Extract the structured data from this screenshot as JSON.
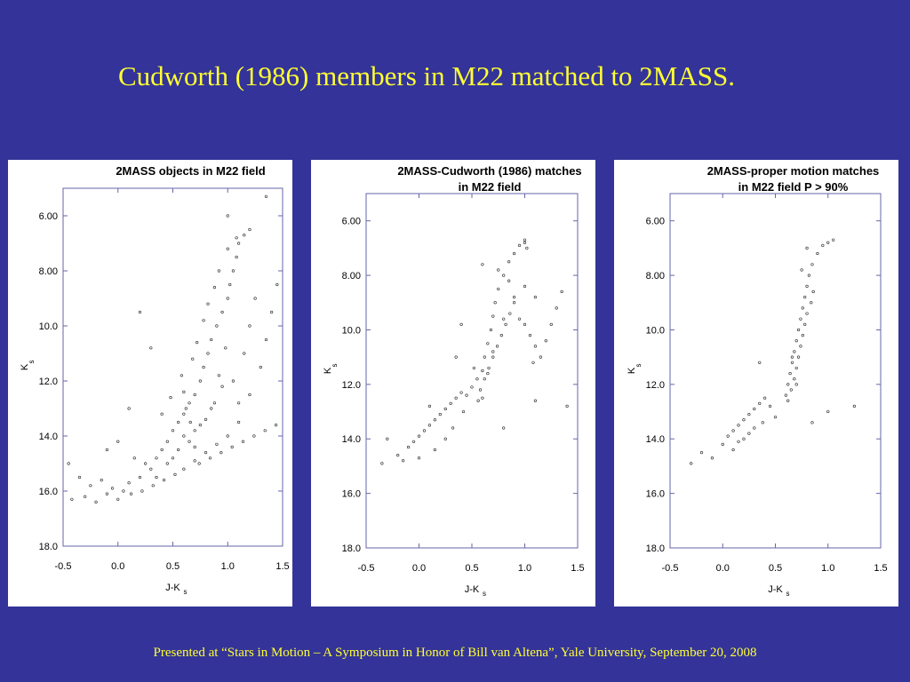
{
  "slide": {
    "title": "Cudworth (1986) members in M22 matched to 2MASS.",
    "footer": "Presented at “Stars in Motion – A Symposium in Honor of Bill van Altena”, Yale University, September 20, 2008",
    "background": "#333399",
    "title_color": "#ffff33"
  },
  "chart_data": [
    {
      "type": "scatter",
      "title_lines": [
        "2MASS objects in M22 field"
      ],
      "xlabel": "J-K",
      "xlabel_sub": "s",
      "ylabel": "K",
      "ylabel_sub": "s",
      "xlim": [
        -0.5,
        1.5
      ],
      "ylim": [
        18.0,
        5.0
      ],
      "xticks": [
        -0.5,
        0.0,
        0.5,
        1.0,
        1.5
      ],
      "xtick_labels": [
        "-0.5",
        "0.0",
        "0.5",
        "1.0",
        "1.5"
      ],
      "yticks": [
        6.0,
        8.0,
        10.0,
        12.0,
        14.0,
        16.0,
        18.0
      ],
      "ytick_labels": [
        "6.00",
        "8.00",
        "10.0",
        "12.0",
        "14.0",
        "16.0",
        "18.0"
      ],
      "grid": false,
      "points": [
        [
          -0.42,
          16.3
        ],
        [
          -0.3,
          16.2
        ],
        [
          -0.2,
          16.4
        ],
        [
          -0.1,
          16.1
        ],
        [
          0.0,
          16.3
        ],
        [
          0.05,
          16.0
        ],
        [
          -0.25,
          15.8
        ],
        [
          -0.15,
          15.6
        ],
        [
          0.1,
          15.7
        ],
        [
          0.2,
          15.5
        ],
        [
          0.3,
          15.2
        ],
        [
          0.35,
          14.8
        ],
        [
          0.4,
          14.5
        ],
        [
          0.45,
          14.2
        ],
        [
          0.5,
          13.8
        ],
        [
          0.55,
          13.5
        ],
        [
          0.6,
          13.2
        ],
        [
          0.65,
          12.8
        ],
        [
          0.7,
          12.5
        ],
        [
          0.75,
          12.0
        ],
        [
          0.78,
          11.5
        ],
        [
          0.82,
          11.0
        ],
        [
          0.85,
          10.5
        ],
        [
          0.9,
          10.0
        ],
        [
          0.95,
          9.5
        ],
        [
          1.0,
          9.0
        ],
        [
          1.02,
          8.5
        ],
        [
          1.05,
          8.0
        ],
        [
          1.08,
          7.5
        ],
        [
          1.1,
          7.0
        ],
        [
          0.6,
          14.0
        ],
        [
          0.65,
          14.2
        ],
        [
          0.7,
          13.8
        ],
        [
          0.75,
          13.6
        ],
        [
          0.8,
          13.4
        ],
        [
          0.85,
          13.0
        ],
        [
          0.55,
          14.5
        ],
        [
          0.5,
          14.8
        ],
        [
          0.45,
          15.0
        ],
        [
          0.6,
          15.2
        ],
        [
          0.7,
          14.9
        ],
        [
          0.8,
          14.6
        ],
        [
          0.9,
          14.3
        ],
        [
          1.0,
          14.0
        ],
        [
          1.1,
          13.5
        ],
        [
          1.2,
          12.5
        ],
        [
          1.3,
          11.5
        ],
        [
          1.35,
          10.5
        ],
        [
          1.4,
          9.5
        ],
        [
          1.45,
          8.5
        ],
        [
          1.2,
          10.0
        ],
        [
          1.25,
          9.0
        ],
        [
          1.15,
          11.0
        ],
        [
          0.95,
          12.2
        ],
        [
          0.88,
          12.8
        ],
        [
          0.92,
          11.8
        ],
        [
          0.98,
          10.8
        ],
        [
          1.05,
          12.0
        ],
        [
          1.1,
          12.8
        ],
        [
          0.3,
          10.8
        ],
        [
          0.2,
          9.5
        ],
        [
          0.1,
          13.0
        ],
        [
          0.0,
          14.2
        ],
        [
          -0.1,
          14.5
        ],
        [
          0.15,
          14.8
        ],
        [
          0.25,
          15.0
        ],
        [
          0.35,
          15.5
        ],
        [
          0.4,
          13.2
        ],
        [
          0.48,
          12.6
        ],
        [
          0.58,
          11.8
        ],
        [
          0.68,
          11.2
        ],
        [
          0.72,
          10.6
        ],
        [
          0.78,
          9.8
        ],
        [
          0.82,
          9.2
        ],
        [
          0.88,
          8.6
        ],
        [
          0.92,
          8.0
        ],
        [
          1.0,
          7.2
        ],
        [
          1.08,
          6.8
        ],
        [
          1.15,
          6.7
        ],
        [
          1.2,
          6.5
        ],
        [
          1.35,
          5.3
        ],
        [
          1.0,
          6.0
        ],
        [
          0.6,
          12.4
        ],
        [
          0.62,
          13.0
        ],
        [
          0.66,
          13.5
        ],
        [
          0.7,
          14.4
        ],
        [
          0.74,
          15.0
        ],
        [
          0.84,
          14.8
        ],
        [
          0.94,
          14.6
        ],
        [
          1.04,
          14.4
        ],
        [
          1.14,
          14.2
        ],
        [
          1.24,
          14.0
        ],
        [
          1.34,
          13.8
        ],
        [
          1.44,
          13.6
        ],
        [
          0.52,
          15.4
        ],
        [
          0.42,
          15.6
        ],
        [
          0.32,
          15.8
        ],
        [
          0.22,
          16.0
        ],
        [
          0.12,
          16.1
        ],
        [
          -0.05,
          15.9
        ],
        [
          -0.35,
          15.5
        ],
        [
          -0.45,
          15.0
        ]
      ]
    },
    {
      "type": "scatter",
      "title_lines": [
        "2MASS-Cudworth (1986) matches",
        "in M22 field"
      ],
      "xlabel": "J-K",
      "xlabel_sub": "s",
      "ylabel": "K",
      "ylabel_sub": "s",
      "xlim": [
        -0.5,
        1.5
      ],
      "ylim": [
        18.0,
        5.0
      ],
      "xticks": [
        -0.5,
        0.0,
        0.5,
        1.0,
        1.5
      ],
      "xtick_labels": [
        "-0.5",
        "0.0",
        "0.5",
        "1.0",
        "1.5"
      ],
      "yticks": [
        6.0,
        8.0,
        10.0,
        12.0,
        14.0,
        16.0,
        18.0
      ],
      "ytick_labels": [
        "6.00",
        "8.00",
        "10.0",
        "12.0",
        "14.0",
        "16.0",
        "18.0"
      ],
      "grid": false,
      "points": [
        [
          -0.35,
          14.9
        ],
        [
          -0.3,
          14.0
        ],
        [
          -0.2,
          14.6
        ],
        [
          -0.1,
          14.3
        ],
        [
          -0.05,
          14.1
        ],
        [
          0.0,
          13.9
        ],
        [
          0.05,
          13.7
        ],
        [
          0.1,
          13.5
        ],
        [
          0.15,
          13.3
        ],
        [
          0.2,
          13.1
        ],
        [
          0.25,
          12.9
        ],
        [
          0.3,
          12.7
        ],
        [
          0.35,
          12.5
        ],
        [
          0.4,
          12.3
        ],
        [
          0.45,
          12.4
        ],
        [
          0.5,
          12.1
        ],
        [
          0.55,
          11.8
        ],
        [
          0.6,
          11.5
        ],
        [
          0.62,
          11.0
        ],
        [
          0.65,
          10.5
        ],
        [
          0.68,
          10.0
        ],
        [
          0.7,
          9.5
        ],
        [
          0.72,
          9.0
        ],
        [
          0.75,
          8.5
        ],
        [
          0.8,
          8.0
        ],
        [
          0.85,
          7.5
        ],
        [
          0.9,
          7.2
        ],
        [
          0.95,
          6.9
        ],
        [
          1.0,
          6.8
        ],
        [
          0.6,
          12.5
        ],
        [
          0.58,
          12.2
        ],
        [
          0.62,
          11.8
        ],
        [
          0.66,
          11.4
        ],
        [
          0.7,
          11.0
        ],
        [
          0.74,
          10.6
        ],
        [
          0.78,
          10.2
        ],
        [
          0.82,
          9.8
        ],
        [
          0.86,
          9.4
        ],
        [
          0.9,
          9.0
        ],
        [
          0.95,
          9.6
        ],
        [
          1.0,
          9.8
        ],
        [
          1.05,
          10.2
        ],
        [
          1.1,
          10.6
        ],
        [
          1.15,
          11.0
        ],
        [
          1.2,
          10.4
        ],
        [
          1.25,
          9.8
        ],
        [
          1.3,
          9.2
        ],
        [
          1.35,
          8.6
        ],
        [
          1.1,
          8.8
        ],
        [
          1.0,
          8.4
        ],
        [
          0.9,
          8.8
        ],
        [
          0.8,
          9.6
        ],
        [
          0.7,
          10.8
        ],
        [
          0.65,
          11.6
        ],
        [
          0.56,
          12.6
        ],
        [
          0.52,
          11.4
        ],
        [
          0.4,
          9.8
        ],
        [
          0.35,
          11.0
        ],
        [
          0.1,
          12.8
        ],
        [
          0.0,
          14.7
        ],
        [
          0.25,
          14.0
        ],
        [
          0.15,
          14.4
        ],
        [
          0.32,
          13.6
        ],
        [
          0.42,
          13.0
        ],
        [
          0.6,
          7.6
        ],
        [
          0.75,
          7.8
        ],
        [
          0.85,
          8.2
        ],
        [
          1.0,
          6.7
        ],
        [
          1.02,
          7.0
        ],
        [
          1.08,
          11.2
        ],
        [
          1.1,
          12.6
        ],
        [
          1.4,
          12.8
        ],
        [
          0.8,
          13.6
        ],
        [
          -0.15,
          14.8
        ]
      ]
    },
    {
      "type": "scatter",
      "title_lines": [
        "2MASS-proper motion matches",
        "in M22 field P > 90%"
      ],
      "xlabel": "J-K",
      "xlabel_sub": "s",
      "ylabel": "K",
      "ylabel_sub": "s",
      "xlim": [
        -0.5,
        1.5
      ],
      "ylim": [
        18.0,
        5.0
      ],
      "xticks": [
        -0.5,
        0.0,
        0.5,
        1.0,
        1.5
      ],
      "xtick_labels": [
        "-0.5",
        "0.0",
        "0.5",
        "1.0",
        "1.5"
      ],
      "yticks": [
        6.0,
        8.0,
        10.0,
        12.0,
        14.0,
        16.0,
        18.0
      ],
      "ytick_labels": [
        "6.00",
        "8.00",
        "10.0",
        "12.0",
        "14.0",
        "16.0",
        "18.0"
      ],
      "grid": false,
      "points": [
        [
          -0.3,
          14.9
        ],
        [
          -0.2,
          14.5
        ],
        [
          -0.1,
          14.7
        ],
        [
          0.0,
          14.2
        ],
        [
          0.05,
          13.9
        ],
        [
          0.1,
          13.7
        ],
        [
          0.15,
          13.5
        ],
        [
          0.2,
          13.3
        ],
        [
          0.25,
          13.1
        ],
        [
          0.3,
          12.9
        ],
        [
          0.35,
          12.7
        ],
        [
          0.4,
          12.5
        ],
        [
          0.2,
          14.0
        ],
        [
          0.1,
          14.4
        ],
        [
          0.3,
          13.6
        ],
        [
          0.25,
          13.8
        ],
        [
          0.15,
          14.1
        ],
        [
          0.6,
          12.4
        ],
        [
          0.62,
          12.0
        ],
        [
          0.64,
          11.6
        ],
        [
          0.66,
          11.2
        ],
        [
          0.68,
          10.8
        ],
        [
          0.7,
          10.4
        ],
        [
          0.72,
          10.0
        ],
        [
          0.74,
          9.6
        ],
        [
          0.76,
          9.2
        ],
        [
          0.78,
          8.8
        ],
        [
          0.8,
          8.4
        ],
        [
          0.82,
          8.0
        ],
        [
          0.85,
          7.6
        ],
        [
          0.9,
          7.2
        ],
        [
          0.95,
          6.9
        ],
        [
          1.0,
          6.8
        ],
        [
          1.05,
          6.7
        ],
        [
          0.65,
          12.2
        ],
        [
          0.68,
          11.8
        ],
        [
          0.7,
          11.4
        ],
        [
          0.72,
          11.0
        ],
        [
          0.74,
          10.6
        ],
        [
          0.76,
          10.2
        ],
        [
          0.78,
          9.8
        ],
        [
          0.8,
          9.4
        ],
        [
          0.84,
          9.0
        ],
        [
          0.86,
          8.6
        ],
        [
          0.66,
          11.0
        ],
        [
          0.7,
          12.0
        ],
        [
          0.62,
          12.6
        ],
        [
          0.5,
          13.2
        ],
        [
          0.45,
          12.8
        ],
        [
          0.8,
          7.0
        ],
        [
          0.75,
          7.8
        ],
        [
          0.85,
          13.4
        ],
        [
          1.0,
          13.0
        ],
        [
          1.25,
          12.8
        ],
        [
          0.35,
          11.2
        ],
        [
          0.38,
          13.4
        ]
      ]
    }
  ]
}
